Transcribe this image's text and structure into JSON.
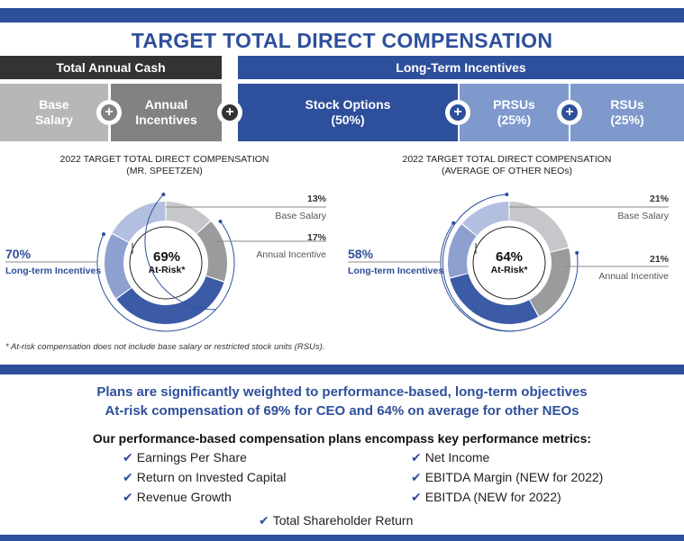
{
  "title": "TARGET TOTAL DIRECT COMPENSATION",
  "headers": {
    "total_annual_cash": "Total Annual Cash",
    "long_term_incentives": "Long-Term Incentives"
  },
  "components": [
    {
      "label": "Base\nSalary"
    },
    {
      "label": "Annual\nIncentives"
    },
    {
      "label": "Stock Options\n(50%)"
    },
    {
      "label": "PRSUs\n(25%)"
    },
    {
      "label": "RSUs\n(25%)"
    }
  ],
  "chart_data": [
    {
      "type": "pie",
      "title": "2022 TARGET TOTAL DIRECT COMPENSATION",
      "subtitle": "(MR. SPEETZEN)",
      "center_value": "69%",
      "center_label": "At-Risk*",
      "slices": [
        {
          "name": "Base Salary",
          "value": 13,
          "label": "13%",
          "color": "#c5c7ca"
        },
        {
          "name": "Annual Incentive",
          "value": 17,
          "label": "17%",
          "color": "#9a9b9d"
        },
        {
          "name": "Stock Options",
          "value": 35,
          "color": "#3b5ba6"
        },
        {
          "name": "PRSUs",
          "value": 18,
          "color": "#8da0cf"
        },
        {
          "name": "RSUs",
          "value": 17,
          "color": "#b3bfdf"
        }
      ],
      "long_term": {
        "value": "70%",
        "label": "Long-term Incentives"
      }
    },
    {
      "type": "pie",
      "title": "2022 TARGET TOTAL DIRECT COMPENSATION",
      "subtitle": "(AVERAGE OF OTHER NEOs)",
      "center_value": "64%",
      "center_label": "At-Risk*",
      "slices": [
        {
          "name": "Base Salary",
          "value": 21,
          "label": "21%",
          "color": "#c5c7ca"
        },
        {
          "name": "Annual Incentive",
          "value": 21,
          "label": "21%",
          "color": "#9a9b9d"
        },
        {
          "name": "Stock Options",
          "value": 29,
          "color": "#3b5ba6"
        },
        {
          "name": "PRSUs",
          "value": 15,
          "color": "#8da0cf"
        },
        {
          "name": "RSUs",
          "value": 14,
          "color": "#b3bfdf"
        }
      ],
      "long_term": {
        "value": "58%",
        "label": "Long-term Incentives"
      }
    }
  ],
  "footnote": "* At-risk compensation does not include base salary or restricted stock units (RSUs).",
  "headline1": "Plans are significantly weighted to performance-based, long-term objectives",
  "headline2": "At-risk compensation of 69% for CEO and 64% on average for other NEOs",
  "subheading": "Our performance-based compensation plans encompass key performance metrics:",
  "check_symbol": "✔",
  "metrics_left": [
    "Earnings Per Share",
    "Return on Invested Capital",
    "Revenue Growth"
  ],
  "metrics_right": [
    "Net Income",
    "EBITDA Margin (NEW for 2022)",
    "EBITDA (NEW for 2022)"
  ],
  "metric_center": "Total Shareholder Return",
  "colors": {
    "navy": "#2e4f9b",
    "dark_gray": "#333333"
  }
}
